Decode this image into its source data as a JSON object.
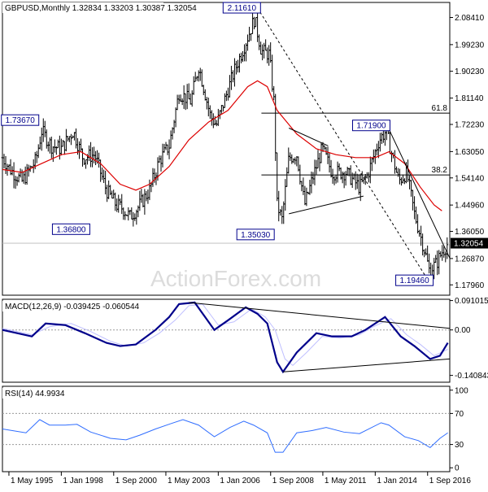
{
  "chart_data": [
    {
      "type": "ohlc",
      "panel": "price",
      "title": "GBPUSD,Monthly  1.32834 1.33203 1.30387 1.32054",
      "current_price": 1.32054,
      "current_price_label": "1.32054",
      "ylim": [
        1.1446,
        2.135
      ],
      "y_ticks": [
        1.1796,
        1.2687,
        1.3605,
        1.4496,
        1.5414,
        1.6305,
        1.7223,
        1.8114,
        1.9023,
        1.9923,
        2.0841
      ],
      "y_tick_labels": [
        "1.17960",
        "1.26870",
        "1.36050",
        "1.44960",
        "1.54140",
        "1.63050",
        "1.72230",
        "1.81140",
        "1.90230",
        "1.99230",
        "2.08410"
      ],
      "x_axis": {
        "range": [
          1995.0,
          2017.8
        ],
        "ticks": [
          1995.33,
          1998.0,
          2000.67,
          2003.33,
          2006.0,
          2008.67,
          2011.33,
          2014.0,
          2016.67
        ],
        "tick_labels": [
          "1 May 1995",
          "1 Jan 1998",
          "1 Sep 2000",
          "1 May 2003",
          "1 Jan 2006",
          "1 Sep 2008",
          "1 May 2011",
          "1 Jan 2014",
          "1 Sep 2016"
        ]
      },
      "pivots": [
        {
          "x": 1995.0,
          "y": 1.61
        },
        {
          "x": 1995.4,
          "y": 1.57
        },
        {
          "x": 1996.0,
          "y": 1.53
        },
        {
          "x": 1996.7,
          "y": 1.6
        },
        {
          "x": 1997.0,
          "y": 1.7
        },
        {
          "x": 1997.5,
          "y": 1.65
        },
        {
          "x": 1998.0,
          "y": 1.64
        },
        {
          "x": 1998.6,
          "y": 1.7
        },
        {
          "x": 1999.1,
          "y": 1.61
        },
        {
          "x": 1999.7,
          "y": 1.62
        },
        {
          "x": 2000.3,
          "y": 1.5
        },
        {
          "x": 2000.8,
          "y": 1.45
        },
        {
          "x": 2001.1,
          "y": 1.44
        },
        {
          "x": 2001.5,
          "y": 1.41
        },
        {
          "x": 2001.9,
          "y": 1.44
        },
        {
          "x": 2002.5,
          "y": 1.5
        },
        {
          "x": 2003.0,
          "y": 1.6
        },
        {
          "x": 2003.5,
          "y": 1.65
        },
        {
          "x": 2004.0,
          "y": 1.83
        },
        {
          "x": 2004.6,
          "y": 1.8
        },
        {
          "x": 2005.0,
          "y": 1.92
        },
        {
          "x": 2005.6,
          "y": 1.75
        },
        {
          "x": 2005.9,
          "y": 1.72
        },
        {
          "x": 2006.3,
          "y": 1.8
        },
        {
          "x": 2006.8,
          "y": 1.9
        },
        {
          "x": 2007.4,
          "y": 2.0
        },
        {
          "x": 2007.85,
          "y": 2.08
        },
        {
          "x": 2008.2,
          "y": 1.97
        },
        {
          "x": 2008.6,
          "y": 1.96
        },
        {
          "x": 2008.85,
          "y": 1.79
        },
        {
          "x": 2009.0,
          "y": 1.45
        },
        {
          "x": 2009.25,
          "y": 1.4
        },
        {
          "x": 2009.6,
          "y": 1.61
        },
        {
          "x": 2010.0,
          "y": 1.62
        },
        {
          "x": 2010.4,
          "y": 1.45
        },
        {
          "x": 2010.9,
          "y": 1.56
        },
        {
          "x": 2011.3,
          "y": 1.64
        },
        {
          "x": 2011.8,
          "y": 1.56
        },
        {
          "x": 2012.5,
          "y": 1.56
        },
        {
          "x": 2013.2,
          "y": 1.51
        },
        {
          "x": 2013.6,
          "y": 1.55
        },
        {
          "x": 2014.2,
          "y": 1.67
        },
        {
          "x": 2014.55,
          "y": 1.7
        },
        {
          "x": 2015.2,
          "y": 1.53
        },
        {
          "x": 2015.6,
          "y": 1.56
        },
        {
          "x": 2016.0,
          "y": 1.42
        },
        {
          "x": 2016.5,
          "y": 1.3
        },
        {
          "x": 2016.75,
          "y": 1.23
        },
        {
          "x": 2017.1,
          "y": 1.25
        },
        {
          "x": 2017.4,
          "y": 1.29
        },
        {
          "x": 2017.7,
          "y": 1.32
        }
      ],
      "moving_average": {
        "color": "#dd0000",
        "points": [
          {
            "x": 1995.0,
            "y": 1.57
          },
          {
            "x": 1996.0,
            "y": 1.56
          },
          {
            "x": 1997.0,
            "y": 1.59
          },
          {
            "x": 1998.0,
            "y": 1.62
          },
          {
            "x": 1999.0,
            "y": 1.63
          },
          {
            "x": 2000.0,
            "y": 1.59
          },
          {
            "x": 2001.0,
            "y": 1.52
          },
          {
            "x": 2001.8,
            "y": 1.5
          },
          {
            "x": 2002.5,
            "y": 1.52
          },
          {
            "x": 2003.5,
            "y": 1.58
          },
          {
            "x": 2004.5,
            "y": 1.67
          },
          {
            "x": 2005.5,
            "y": 1.73
          },
          {
            "x": 2006.5,
            "y": 1.77
          },
          {
            "x": 2007.5,
            "y": 1.85
          },
          {
            "x": 2008.0,
            "y": 1.87
          },
          {
            "x": 2008.5,
            "y": 1.85
          },
          {
            "x": 2009.0,
            "y": 1.77
          },
          {
            "x": 2009.5,
            "y": 1.73
          },
          {
            "x": 2010.0,
            "y": 1.69
          },
          {
            "x": 2011.0,
            "y": 1.64
          },
          {
            "x": 2012.0,
            "y": 1.62
          },
          {
            "x": 2013.0,
            "y": 1.61
          },
          {
            "x": 2014.0,
            "y": 1.61
          },
          {
            "x": 2014.7,
            "y": 1.63
          },
          {
            "x": 2015.5,
            "y": 1.59
          },
          {
            "x": 2016.3,
            "y": 1.51
          },
          {
            "x": 2017.0,
            "y": 1.45
          },
          {
            "x": 2017.4,
            "y": 1.43
          }
        ]
      },
      "horizontal_levels": [
        {
          "value": 1.7605,
          "label": "61.8",
          "x_from": 2008.2
        },
        {
          "value": 1.5513,
          "label": "38.2",
          "x_from": 2008.2
        },
        {
          "value": 1.32054,
          "label": "",
          "x_from": 1995.0
        }
      ],
      "trendlines": [
        {
          "points": [
            {
              "x": 2008.0,
              "y": 2.1161
            },
            {
              "x": 2016.7,
              "y": 1.1946
            }
          ],
          "style": "dashed"
        },
        {
          "points": [
            {
              "x": 2009.6,
              "y": 1.71
            },
            {
              "x": 2011.6,
              "y": 1.65
            }
          ],
          "style": "solid"
        },
        {
          "points": [
            {
              "x": 2009.6,
              "y": 1.42
            },
            {
              "x": 2013.4,
              "y": 1.48
            }
          ],
          "style": "solid"
        },
        {
          "points": [
            {
              "x": 2014.6,
              "y": 1.72
            },
            {
              "x": 2017.8,
              "y": 1.27
            }
          ],
          "style": "solid"
        }
      ],
      "price_labels": [
        {
          "text": "2.11610",
          "x": 2007.2,
          "y": 2.117
        },
        {
          "text": "1.73670",
          "x": 1995.9,
          "y": 1.737
        },
        {
          "text": "1.36800",
          "x": 1998.5,
          "y": 1.368
        },
        {
          "text": "1.35030",
          "x": 2007.9,
          "y": 1.35
        },
        {
          "text": "1.71900",
          "x": 2013.8,
          "y": 1.719
        },
        {
          "text": "1.19460",
          "x": 2016.0,
          "y": 1.195
        }
      ],
      "watermark": "ActionForex.com"
    },
    {
      "type": "line",
      "panel": "indicator",
      "title": "MACD(12,26,9) -0.039425 -0.060544",
      "ylim": [
        -0.162,
        0.095
      ],
      "y_ticks": [
        0.091015,
        0.0,
        -0.140843
      ],
      "y_tick_labels": [
        "0.091015",
        "0.00",
        "-0.140843"
      ],
      "series": [
        {
          "values": [
            {
              "x": 1995.0,
              "y": 0.0
            },
            {
              "x": 1996.5,
              "y": -0.02
            },
            {
              "x": 1997.2,
              "y": 0.02
            },
            {
              "x": 1998.2,
              "y": 0.015
            },
            {
              "x": 1999.2,
              "y": -0.01
            },
            {
              "x": 2000.3,
              "y": -0.04
            },
            {
              "x": 2001.0,
              "y": -0.05
            },
            {
              "x": 2001.8,
              "y": -0.045
            },
            {
              "x": 2002.8,
              "y": 0.0
            },
            {
              "x": 2003.5,
              "y": 0.04
            },
            {
              "x": 2004.0,
              "y": 0.08
            },
            {
              "x": 2004.8,
              "y": 0.085
            },
            {
              "x": 2005.8,
              "y": 0.0
            },
            {
              "x": 2006.5,
              "y": 0.03
            },
            {
              "x": 2007.4,
              "y": 0.07
            },
            {
              "x": 2008.0,
              "y": 0.05
            },
            {
              "x": 2008.5,
              "y": 0.02
            },
            {
              "x": 2009.0,
              "y": -0.1
            },
            {
              "x": 2009.3,
              "y": -0.13
            },
            {
              "x": 2010.0,
              "y": -0.07
            },
            {
              "x": 2011.0,
              "y": -0.01
            },
            {
              "x": 2011.8,
              "y": -0.02
            },
            {
              "x": 2012.8,
              "y": -0.02
            },
            {
              "x": 2013.5,
              "y": 0.0
            },
            {
              "x": 2014.5,
              "y": 0.04
            },
            {
              "x": 2015.3,
              "y": -0.02
            },
            {
              "x": 2016.0,
              "y": -0.05
            },
            {
              "x": 2016.8,
              "y": -0.09
            },
            {
              "x": 2017.3,
              "y": -0.08
            },
            {
              "x": 2017.7,
              "y": -0.04
            }
          ]
        },
        {
          "values": [
            {
              "x": 1995.0,
              "y": 0.005
            },
            {
              "x": 1996.5,
              "y": -0.015
            },
            {
              "x": 1997.4,
              "y": 0.01
            },
            {
              "x": 1998.5,
              "y": 0.02
            },
            {
              "x": 1999.5,
              "y": -0.005
            },
            {
              "x": 2000.5,
              "y": -0.035
            },
            {
              "x": 2001.3,
              "y": -0.05
            },
            {
              "x": 2002.2,
              "y": -0.04
            },
            {
              "x": 2003.0,
              "y": -0.01
            },
            {
              "x": 2003.8,
              "y": 0.03
            },
            {
              "x": 2004.5,
              "y": 0.075
            },
            {
              "x": 2005.2,
              "y": 0.08
            },
            {
              "x": 2006.0,
              "y": 0.015
            },
            {
              "x": 2006.8,
              "y": 0.025
            },
            {
              "x": 2007.7,
              "y": 0.065
            },
            {
              "x": 2008.4,
              "y": 0.04
            },
            {
              "x": 2008.9,
              "y": 0.0
            },
            {
              "x": 2009.4,
              "y": -0.09
            },
            {
              "x": 2009.8,
              "y": -0.11
            },
            {
              "x": 2010.5,
              "y": -0.07
            },
            {
              "x": 2011.3,
              "y": -0.02
            },
            {
              "x": 2012.2,
              "y": -0.025
            },
            {
              "x": 2013.2,
              "y": -0.015
            },
            {
              "x": 2013.9,
              "y": 0.01
            },
            {
              "x": 2014.8,
              "y": 0.035
            },
            {
              "x": 2015.6,
              "y": -0.015
            },
            {
              "x": 2016.3,
              "y": -0.045
            },
            {
              "x": 2017.0,
              "y": -0.08
            },
            {
              "x": 2017.7,
              "y": -0.06
            }
          ]
        }
      ],
      "series_colors": [
        "#00008b",
        "#bfbfff"
      ],
      "trendlines": [
        {
          "points": [
            {
              "x": 2004.5,
              "y": 0.085
            },
            {
              "x": 2017.8,
              "y": 0.005
            }
          ]
        },
        {
          "points": [
            {
              "x": 2009.3,
              "y": -0.13
            },
            {
              "x": 2017.8,
              "y": -0.09
            }
          ]
        }
      ]
    },
    {
      "type": "line",
      "panel": "indicator",
      "title": "RSI(14) 44.9934",
      "ylim": [
        -5,
        105
      ],
      "y_ticks": [
        100,
        70,
        30,
        0
      ],
      "y_tick_labels": [
        "100",
        "70",
        "30",
        "0"
      ],
      "series": [
        {
          "values": [
            {
              "x": 1995.0,
              "y": 50
            },
            {
              "x": 1996.2,
              "y": 45
            },
            {
              "x": 1996.9,
              "y": 62
            },
            {
              "x": 1997.4,
              "y": 55
            },
            {
              "x": 1998.2,
              "y": 55
            },
            {
              "x": 1998.8,
              "y": 56
            },
            {
              "x": 1999.5,
              "y": 46
            },
            {
              "x": 2000.5,
              "y": 38
            },
            {
              "x": 2001.3,
              "y": 36
            },
            {
              "x": 2002.0,
              "y": 42
            },
            {
              "x": 2002.8,
              "y": 50
            },
            {
              "x": 2003.6,
              "y": 57
            },
            {
              "x": 2004.2,
              "y": 62
            },
            {
              "x": 2005.0,
              "y": 55
            },
            {
              "x": 2005.8,
              "y": 40
            },
            {
              "x": 2006.6,
              "y": 52
            },
            {
              "x": 2007.3,
              "y": 60
            },
            {
              "x": 2007.8,
              "y": 55
            },
            {
              "x": 2008.5,
              "y": 45
            },
            {
              "x": 2008.9,
              "y": 20
            },
            {
              "x": 2009.3,
              "y": 20
            },
            {
              "x": 2010.0,
              "y": 45
            },
            {
              "x": 2010.8,
              "y": 48
            },
            {
              "x": 2011.5,
              "y": 52
            },
            {
              "x": 2012.4,
              "y": 46
            },
            {
              "x": 2013.2,
              "y": 44
            },
            {
              "x": 2014.3,
              "y": 58
            },
            {
              "x": 2014.7,
              "y": 55
            },
            {
              "x": 2015.5,
              "y": 40
            },
            {
              "x": 2016.2,
              "y": 35
            },
            {
              "x": 2016.8,
              "y": 26
            },
            {
              "x": 2017.3,
              "y": 38
            },
            {
              "x": 2017.7,
              "y": 45
            }
          ]
        }
      ],
      "series_colors": [
        "#2f6dff"
      ],
      "levels": [
        70,
        30
      ]
    }
  ]
}
